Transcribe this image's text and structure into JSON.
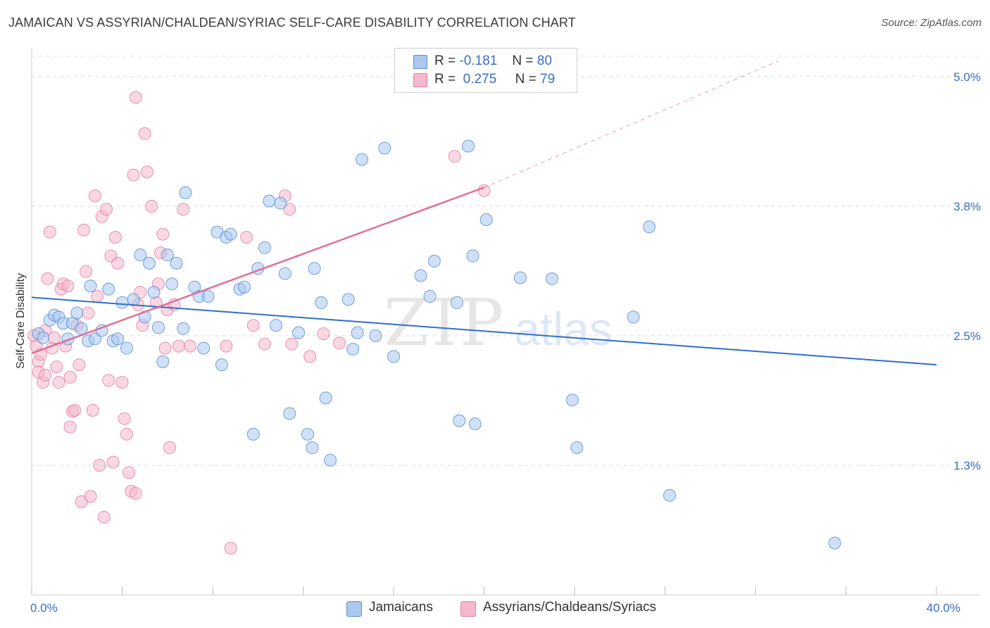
{
  "title": "JAMAICAN VS ASSYRIAN/CHALDEAN/SYRIAC SELF-CARE DISABILITY CORRELATION CHART",
  "source": "Source: ZipAtlas.com",
  "watermark": {
    "zip": "ZIP",
    "atlas": "atlas"
  },
  "legend": {
    "r_label": "R =",
    "n_label": "N =",
    "jamaicans": {
      "r": "-0.181",
      "n": "80"
    },
    "assyrians": {
      "r": "0.275",
      "n": "79"
    }
  },
  "colors": {
    "jamaicans_fill": "#aac8f0",
    "jamaicans_stroke": "#5b8fd4",
    "jamaicans_line": "#2f6fc8",
    "assyrians_fill": "#f5b8cc",
    "assyrians_stroke": "#e080a0",
    "assyrians_line": "#e0709a",
    "tick_text": "#3a6fc4"
  },
  "chart_data": {
    "type": "scatter",
    "xlabel": "",
    "ylabel": "Self-Care Disability",
    "x_unit": "%",
    "y_unit": "%",
    "xlim": [
      0,
      40
    ],
    "ylim": [
      0,
      5.25
    ],
    "x_tick_labels": [
      {
        "value": 0,
        "label": "0.0%"
      },
      {
        "value": 40,
        "label": "40.0%"
      }
    ],
    "x_minor_ticks": [
      0,
      4,
      8,
      12,
      16,
      20,
      24,
      28,
      32,
      36,
      40
    ],
    "y_ticks": [
      {
        "value": 1.25,
        "label": "1.3%"
      },
      {
        "value": 2.5,
        "label": "2.5%"
      },
      {
        "value": 3.75,
        "label": "3.8%"
      },
      {
        "value": 5.0,
        "label": "5.0%"
      }
    ],
    "grid": "horizontal dashed",
    "legend_position": "top-center and bottom",
    "series": [
      {
        "name": "Jamaicans",
        "color": "#aac8f0",
        "trend": {
          "x0": 0,
          "y0": 2.87,
          "x1": 40,
          "y1": 2.22,
          "dashed_from": null
        },
        "points": [
          [
            0.3,
            2.52
          ],
          [
            0.5,
            2.48
          ],
          [
            0.8,
            2.65
          ],
          [
            1.0,
            2.7
          ],
          [
            1.2,
            2.68
          ],
          [
            1.4,
            2.62
          ],
          [
            1.6,
            2.47
          ],
          [
            1.8,
            2.62
          ],
          [
            2.0,
            2.72
          ],
          [
            2.2,
            2.57
          ],
          [
            2.5,
            2.45
          ],
          [
            2.6,
            2.98
          ],
          [
            2.8,
            2.47
          ],
          [
            3.1,
            2.55
          ],
          [
            3.4,
            2.95
          ],
          [
            3.6,
            2.45
          ],
          [
            3.8,
            2.47
          ],
          [
            4.0,
            2.82
          ],
          [
            4.2,
            2.38
          ],
          [
            4.5,
            2.85
          ],
          [
            4.8,
            3.28
          ],
          [
            5.0,
            2.68
          ],
          [
            5.2,
            3.2
          ],
          [
            5.4,
            2.92
          ],
          [
            5.6,
            2.58
          ],
          [
            5.8,
            2.25
          ],
          [
            6.0,
            3.28
          ],
          [
            6.2,
            3.0
          ],
          [
            6.4,
            3.2
          ],
          [
            6.7,
            2.57
          ],
          [
            6.8,
            3.88
          ],
          [
            7.2,
            2.97
          ],
          [
            7.4,
            2.88
          ],
          [
            7.6,
            2.38
          ],
          [
            7.8,
            2.88
          ],
          [
            8.2,
            3.5
          ],
          [
            8.4,
            2.22
          ],
          [
            8.6,
            3.45
          ],
          [
            8.8,
            3.48
          ],
          [
            9.2,
            2.95
          ],
          [
            9.4,
            2.97
          ],
          [
            9.8,
            1.55
          ],
          [
            10.0,
            3.15
          ],
          [
            10.3,
            3.35
          ],
          [
            10.5,
            3.8
          ],
          [
            10.8,
            2.6
          ],
          [
            11.0,
            3.78
          ],
          [
            11.2,
            3.1
          ],
          [
            11.4,
            1.75
          ],
          [
            11.8,
            2.53
          ],
          [
            12.2,
            1.55
          ],
          [
            12.4,
            1.42
          ],
          [
            12.5,
            3.15
          ],
          [
            12.8,
            2.82
          ],
          [
            13.0,
            1.9
          ],
          [
            13.2,
            1.3
          ],
          [
            14.0,
            2.85
          ],
          [
            14.2,
            2.37
          ],
          [
            14.4,
            2.53
          ],
          [
            14.6,
            4.2
          ],
          [
            15.2,
            2.5
          ],
          [
            15.6,
            4.31
          ],
          [
            16.0,
            2.3
          ],
          [
            17.2,
            3.08
          ],
          [
            17.6,
            2.88
          ],
          [
            17.8,
            3.22
          ],
          [
            18.8,
            2.82
          ],
          [
            18.9,
            1.68
          ],
          [
            19.3,
            4.33
          ],
          [
            19.5,
            3.27
          ],
          [
            19.6,
            1.65
          ],
          [
            20.1,
            3.62
          ],
          [
            21.6,
            3.06
          ],
          [
            23.0,
            3.05
          ],
          [
            23.9,
            1.88
          ],
          [
            24.1,
            1.42
          ],
          [
            26.6,
            2.68
          ],
          [
            27.3,
            3.55
          ],
          [
            28.2,
            0.96
          ],
          [
            35.5,
            0.5
          ]
        ]
      },
      {
        "name": "Assyrians/Chaldeans/Syriacs",
        "color": "#f5b8cc",
        "trend": {
          "x0": 0,
          "y0": 2.33,
          "x1": 20,
          "y1": 3.93,
          "dashed_from": 20,
          "dashed_to": [
            33,
            5.15
          ]
        },
        "points": [
          [
            0.1,
            2.5
          ],
          [
            0.2,
            2.4
          ],
          [
            0.3,
            2.25
          ],
          [
            0.3,
            2.15
          ],
          [
            0.4,
            2.32
          ],
          [
            0.5,
            2.05
          ],
          [
            0.6,
            2.12
          ],
          [
            0.6,
            2.55
          ],
          [
            0.7,
            3.05
          ],
          [
            0.8,
            3.5
          ],
          [
            0.9,
            2.38
          ],
          [
            1.0,
            2.48
          ],
          [
            1.1,
            2.2
          ],
          [
            1.2,
            2.05
          ],
          [
            1.3,
            2.95
          ],
          [
            1.4,
            3.0
          ],
          [
            1.5,
            2.4
          ],
          [
            1.6,
            2.98
          ],
          [
            1.7,
            1.62
          ],
          [
            1.7,
            2.1
          ],
          [
            1.8,
            1.77
          ],
          [
            1.9,
            1.78
          ],
          [
            2.0,
            2.6
          ],
          [
            2.1,
            2.22
          ],
          [
            2.2,
            0.9
          ],
          [
            2.3,
            3.52
          ],
          [
            2.4,
            3.12
          ],
          [
            2.5,
            2.72
          ],
          [
            2.6,
            0.95
          ],
          [
            2.7,
            1.78
          ],
          [
            2.8,
            3.85
          ],
          [
            2.9,
            2.88
          ],
          [
            3.0,
            1.25
          ],
          [
            3.1,
            3.65
          ],
          [
            3.2,
            0.75
          ],
          [
            3.3,
            3.72
          ],
          [
            3.4,
            2.07
          ],
          [
            3.5,
            3.27
          ],
          [
            3.6,
            1.28
          ],
          [
            3.7,
            3.45
          ],
          [
            3.8,
            3.2
          ],
          [
            4.0,
            2.05
          ],
          [
            4.1,
            1.7
          ],
          [
            4.2,
            1.55
          ],
          [
            4.3,
            1.18
          ],
          [
            4.4,
            1.0
          ],
          [
            4.5,
            4.05
          ],
          [
            4.6,
            0.98
          ],
          [
            4.6,
            4.8
          ],
          [
            4.7,
            2.8
          ],
          [
            4.8,
            2.92
          ],
          [
            4.9,
            2.6
          ],
          [
            5.0,
            4.45
          ],
          [
            5.1,
            4.08
          ],
          [
            5.3,
            3.75
          ],
          [
            5.5,
            2.82
          ],
          [
            5.6,
            3.0
          ],
          [
            5.7,
            3.3
          ],
          [
            5.8,
            3.48
          ],
          [
            5.9,
            2.38
          ],
          [
            6.0,
            2.75
          ],
          [
            6.1,
            1.42
          ],
          [
            6.3,
            2.8
          ],
          [
            6.5,
            2.4
          ],
          [
            6.7,
            3.72
          ],
          [
            7.0,
            2.4
          ],
          [
            8.6,
            2.4
          ],
          [
            8.8,
            0.45
          ],
          [
            9.5,
            3.45
          ],
          [
            9.8,
            2.6
          ],
          [
            10.3,
            2.42
          ],
          [
            11.2,
            3.85
          ],
          [
            11.4,
            3.72
          ],
          [
            11.5,
            2.42
          ],
          [
            12.3,
            2.3
          ],
          [
            12.9,
            2.52
          ],
          [
            13.6,
            2.43
          ],
          [
            18.7,
            4.23
          ],
          [
            20.0,
            3.9
          ]
        ]
      }
    ]
  }
}
